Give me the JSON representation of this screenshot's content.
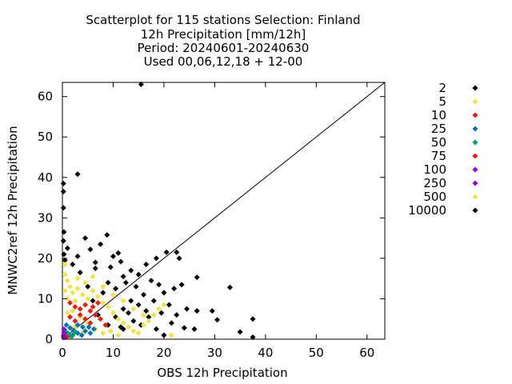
{
  "chart_data": {
    "type": "scatter",
    "title_lines": [
      "Scatterplot for  115 stations Selection: Finland",
      "12h Precipitation [mm/12h]",
      "Period: 20240601-20240630",
      "Used 00,06,12,18 + 12-00"
    ],
    "xlabel": "OBS 12h Precipitation",
    "ylabel": "MNWC2ref 12h Precipitation",
    "xlim": [
      0,
      63.5
    ],
    "ylim": [
      0,
      63.5
    ],
    "x_ticks": [
      "0",
      "10",
      "20",
      "30",
      "40",
      "50",
      "60"
    ],
    "y_ticks": [
      "0",
      "10",
      "20",
      "30",
      "40",
      "50",
      "60"
    ],
    "diagonal": true,
    "grid": false,
    "legend_position": "right",
    "legend": [
      {
        "label": "2",
        "color": "#000000"
      },
      {
        "label": "5",
        "color": "#f0e442"
      },
      {
        "label": "10",
        "color": "#e51e10"
      },
      {
        "label": "25",
        "color": "#0072b2"
      },
      {
        "label": "50",
        "color": "#009e73"
      },
      {
        "label": "75",
        "color": "#e51e10"
      },
      {
        "label": "100",
        "color": "#9400d3"
      },
      {
        "label": "250",
        "color": "#9400d3"
      },
      {
        "label": "500",
        "color": "#f0e442"
      },
      {
        "label": "10000",
        "color": "#000000"
      }
    ],
    "series": [
      {
        "name": "2",
        "color": "#000000",
        "points": [
          [
            15.5,
            63
          ],
          [
            3.0,
            40.8
          ],
          [
            0.2,
            38.5
          ],
          [
            0.2,
            36.5
          ],
          [
            0.2,
            32.5
          ],
          [
            0.3,
            26.5
          ],
          [
            0.2,
            24.3
          ],
          [
            0.3,
            21.0
          ],
          [
            4.5,
            25.0
          ],
          [
            8.8,
            25.8
          ],
          [
            7.5,
            23.5
          ],
          [
            5.5,
            22.2
          ],
          [
            11.0,
            21.3
          ],
          [
            1.0,
            22.5
          ],
          [
            3.0,
            20.5
          ],
          [
            11.5,
            19.2
          ],
          [
            16.5,
            18.5
          ],
          [
            20.5,
            21.5
          ],
          [
            22.5,
            21.5
          ],
          [
            18.5,
            20.0
          ],
          [
            23.0,
            20.0
          ],
          [
            6.5,
            17.5
          ],
          [
            9.5,
            17.8
          ],
          [
            13.5,
            17.0
          ],
          [
            26.5,
            15.3
          ],
          [
            33.0,
            12.8
          ],
          [
            15.0,
            16.0
          ],
          [
            17.5,
            14.5
          ],
          [
            19.0,
            13.5
          ],
          [
            20.0,
            11.5
          ],
          [
            22.0,
            12.5
          ],
          [
            23.5,
            13.5
          ],
          [
            24.5,
            7.5
          ],
          [
            21.0,
            8.5
          ],
          [
            17.0,
            5.5
          ],
          [
            13.0,
            6.5
          ],
          [
            12.0,
            7.5
          ],
          [
            14.0,
            4.5
          ],
          [
            15.5,
            3.5
          ],
          [
            11.5,
            3.0
          ],
          [
            26.5,
            7.0
          ],
          [
            26.0,
            2.5
          ],
          [
            24.0,
            2.8
          ],
          [
            29.5,
            7.0
          ],
          [
            30.5,
            4.8
          ],
          [
            37.5,
            5.0
          ],
          [
            35.0,
            1.8
          ],
          [
            37.5,
            0.5
          ],
          [
            20.0,
            1.0
          ],
          [
            18.5,
            2.5
          ],
          [
            9.0,
            14.0
          ],
          [
            10.5,
            12.5
          ],
          [
            12.5,
            14.0
          ],
          [
            14.5,
            13.0
          ],
          [
            16.0,
            11.0
          ],
          [
            8.0,
            11.5
          ],
          [
            6.0,
            9.5
          ],
          [
            5.0,
            13.0
          ],
          [
            7.0,
            6.0
          ],
          [
            9.0,
            3.5
          ],
          [
            10.5,
            5.5
          ],
          [
            12.0,
            2.5
          ],
          [
            13.5,
            9.5
          ],
          [
            15.0,
            8.5
          ],
          [
            16.5,
            7.0
          ],
          [
            18.0,
            9.5
          ],
          [
            19.5,
            6.5
          ],
          [
            21.5,
            4.0
          ],
          [
            22.5,
            6.0
          ],
          [
            3.5,
            16.5
          ],
          [
            2.0,
            18.5
          ],
          [
            0.5,
            19.5
          ],
          [
            6.5,
            19.0
          ],
          [
            10.0,
            20.5
          ],
          [
            12.0,
            15.5
          ]
        ]
      },
      {
        "name": "5",
        "color": "#f0e442",
        "points": [
          [
            0.5,
            18.5
          ],
          [
            0.5,
            16.0
          ],
          [
            1.0,
            14.5
          ],
          [
            1.5,
            13.0
          ],
          [
            2.0,
            11.5
          ],
          [
            0.5,
            12.0
          ],
          [
            1.0,
            10.0
          ],
          [
            2.5,
            9.5
          ],
          [
            3.0,
            12.5
          ],
          [
            4.0,
            11.0
          ],
          [
            5.0,
            10.0
          ],
          [
            6.0,
            12.0
          ],
          [
            7.0,
            10.5
          ],
          [
            8.0,
            9.0
          ],
          [
            9.0,
            8.0
          ],
          [
            10.0,
            6.5
          ],
          [
            11.0,
            5.0
          ],
          [
            12.0,
            4.0
          ],
          [
            13.0,
            3.0
          ],
          [
            14.0,
            2.0
          ],
          [
            15.0,
            1.5
          ],
          [
            16.0,
            3.5
          ],
          [
            17.0,
            4.5
          ],
          [
            18.0,
            6.0
          ],
          [
            19.0,
            7.5
          ],
          [
            20.0,
            8.5
          ],
          [
            21.5,
            1.0
          ],
          [
            3.0,
            15.0
          ],
          [
            4.5,
            14.0
          ],
          [
            6.0,
            15.5
          ],
          [
            8.0,
            13.0
          ],
          [
            10.0,
            11.0
          ],
          [
            12.0,
            9.5
          ],
          [
            14.0,
            7.5
          ],
          [
            16.0,
            6.0
          ],
          [
            2.0,
            7.0
          ],
          [
            3.5,
            5.5
          ],
          [
            5.0,
            4.0
          ],
          [
            6.5,
            2.5
          ],
          [
            8.0,
            1.5
          ],
          [
            9.5,
            2.0
          ],
          [
            11.0,
            1.0
          ],
          [
            1.0,
            6.5
          ],
          [
            2.5,
            3.0
          ],
          [
            4.0,
            1.5
          ]
        ]
      },
      {
        "name": "10",
        "color": "#e51e10",
        "points": [
          [
            1.5,
            9.0
          ],
          [
            2.5,
            8.0
          ],
          [
            3.5,
            7.5
          ],
          [
            4.5,
            8.5
          ],
          [
            5.5,
            7.0
          ],
          [
            6.5,
            6.0
          ],
          [
            7.5,
            5.0
          ],
          [
            1.5,
            5.5
          ],
          [
            2.5,
            4.5
          ],
          [
            3.5,
            6.0
          ],
          [
            4.5,
            5.0
          ],
          [
            5.5,
            4.0
          ],
          [
            8.5,
            3.5
          ],
          [
            7.0,
            9.0
          ],
          [
            6.0,
            8.0
          ]
        ]
      },
      {
        "name": "25",
        "color": "#0072b2",
        "points": [
          [
            0.8,
            3.5
          ],
          [
            1.5,
            2.8
          ],
          [
            2.2,
            2.2
          ],
          [
            3.0,
            1.5
          ],
          [
            3.8,
            1.0
          ],
          [
            4.5,
            2.0
          ],
          [
            5.2,
            3.0
          ],
          [
            1.0,
            1.5
          ],
          [
            2.0,
            1.0
          ],
          [
            3.0,
            3.5
          ],
          [
            4.0,
            3.0
          ],
          [
            5.5,
            1.5
          ],
          [
            6.2,
            2.5
          ]
        ]
      },
      {
        "name": "50",
        "color": "#009e73",
        "points": [
          [
            0.6,
            2.0
          ],
          [
            1.2,
            1.2
          ],
          [
            1.8,
            0.6
          ],
          [
            0.5,
            0.8
          ],
          [
            2.5,
            1.8
          ]
        ]
      },
      {
        "name": "75",
        "color": "#e51e10",
        "points": [
          [
            0.4,
            1.0
          ],
          [
            0.9,
            0.5
          ]
        ]
      },
      {
        "name": "100",
        "color": "#9400d3",
        "points": [
          [
            0.3,
            2.5
          ],
          [
            0.3,
            1.5
          ],
          [
            0.3,
            0.4
          ]
        ]
      },
      {
        "name": "250",
        "color": "#9400d3",
        "points": [
          [
            0.2,
            0.8
          ]
        ]
      }
    ]
  }
}
